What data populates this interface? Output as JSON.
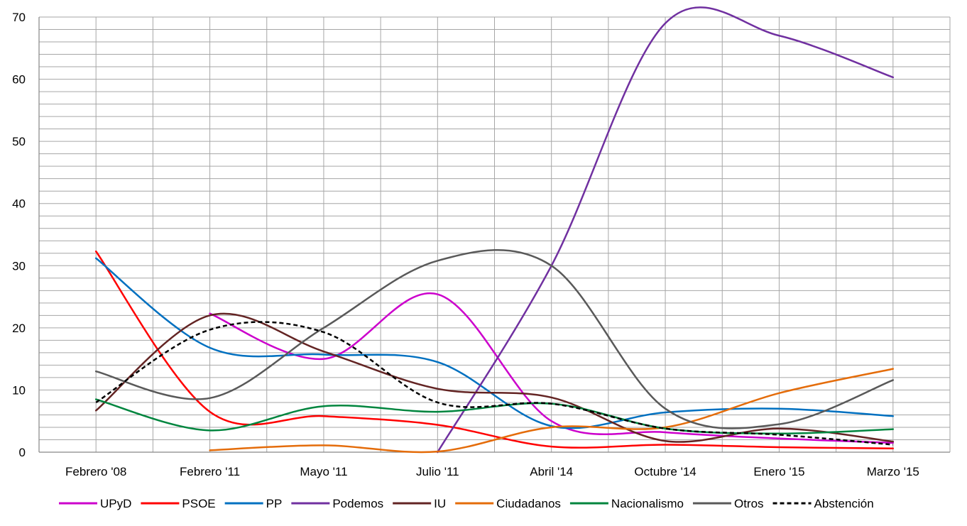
{
  "chart_data": {
    "type": "line",
    "title": "",
    "xlabel": "",
    "ylabel": "",
    "categories": [
      "Febrero '08",
      "Febrero '11",
      "Mayo '11",
      "Julio '11",
      "Abril '14",
      "Octubre '14",
      "Enero '15",
      "Marzo '15"
    ],
    "ylim": [
      0,
      70
    ],
    "yticks": [
      "0",
      "10",
      "20",
      "30",
      "40",
      "50",
      "60",
      "70"
    ],
    "grid": true,
    "legend": "bottom",
    "series": [
      {
        "name": "UPyD",
        "color": "#CC00CC",
        "dashed": false,
        "values": [
          null,
          22.3,
          15.0,
          25.4,
          5.0,
          3.2,
          2.2,
          1.5
        ]
      },
      {
        "name": "PSOE",
        "color": "#FF0000",
        "dashed": false,
        "values": [
          32.3,
          6.5,
          5.8,
          4.4,
          0.9,
          1.2,
          0.8,
          0.6
        ]
      },
      {
        "name": "PP",
        "color": "#0070C0",
        "dashed": false,
        "values": [
          31.2,
          16.8,
          15.7,
          14.5,
          4.2,
          6.4,
          7.0,
          5.8
        ]
      },
      {
        "name": "Podemos",
        "color": "#7030A0",
        "dashed": false,
        "values": [
          null,
          null,
          null,
          0.0,
          30.0,
          69.0,
          67.0,
          60.3
        ]
      },
      {
        "name": "IU",
        "color": "#632423",
        "dashed": false,
        "values": [
          6.7,
          22.0,
          16.2,
          10.2,
          8.8,
          1.8,
          3.8,
          1.7
        ]
      },
      {
        "name": "Ciudadanos",
        "color": "#E46C0A",
        "dashed": false,
        "values": [
          null,
          0.3,
          1.1,
          0.1,
          4.0,
          4.0,
          9.5,
          13.4
        ]
      },
      {
        "name": "Nacionalismo",
        "color": "#00853E",
        "dashed": false,
        "values": [
          8.5,
          3.5,
          7.4,
          6.5,
          7.8,
          3.8,
          3.0,
          3.7
        ]
      },
      {
        "name": "Otros",
        "color": "#595959",
        "dashed": false,
        "values": [
          13.0,
          8.7,
          20.0,
          30.8,
          30.0,
          7.0,
          4.5,
          11.6
        ]
      },
      {
        "name": "Abstención",
        "color": "#000000",
        "dashed": true,
        "values": [
          8.0,
          19.7,
          19.3,
          8.0,
          7.8,
          3.8,
          2.8,
          1.2
        ]
      }
    ]
  }
}
